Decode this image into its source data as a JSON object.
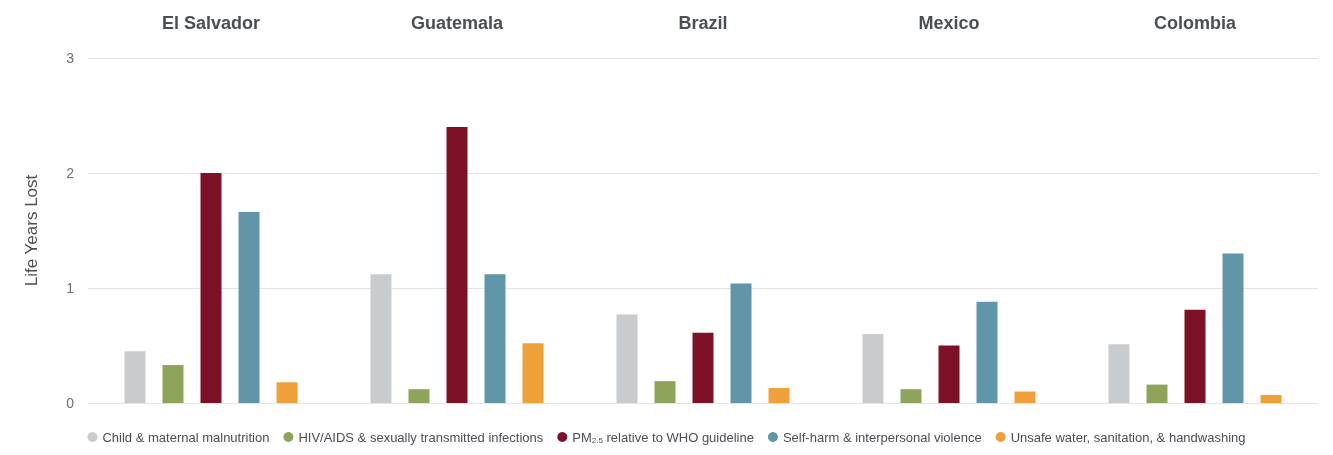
{
  "chart_data": {
    "type": "bar",
    "ylabel": "Life Years Lost",
    "categories": [
      "El Salvador",
      "Guatemala",
      "Brazil",
      "Mexico",
      "Colombia"
    ],
    "ylim": [
      0,
      3
    ],
    "yticks": [
      0,
      1,
      2,
      3
    ],
    "grid": "y",
    "legend": "bottom",
    "series": [
      {
        "name": "Child & maternal malnutrition",
        "color": "#c9cccf",
        "values": [
          0.45,
          1.12,
          0.77,
          0.6,
          0.51
        ]
      },
      {
        "name": "HIV/AIDS & sexually transmitted infections",
        "color": "#8da45a",
        "values": [
          0.33,
          0.12,
          0.19,
          0.12,
          0.16
        ]
      },
      {
        "name": "PM$_{2.5}$ relative to WHO guideline",
        "color": "#7d1128",
        "values": [
          2.0,
          2.4,
          0.61,
          0.5,
          0.81
        ]
      },
      {
        "name": "Self-harm & interpersonal violence",
        "color": "#6096a8",
        "values": [
          1.66,
          1.12,
          1.04,
          0.88,
          1.3
        ]
      },
      {
        "name": "Unsafe water, sanitation, & handwashing",
        "color": "#f0a03a",
        "values": [
          0.18,
          0.52,
          0.13,
          0.1,
          0.07
        ]
      }
    ]
  }
}
